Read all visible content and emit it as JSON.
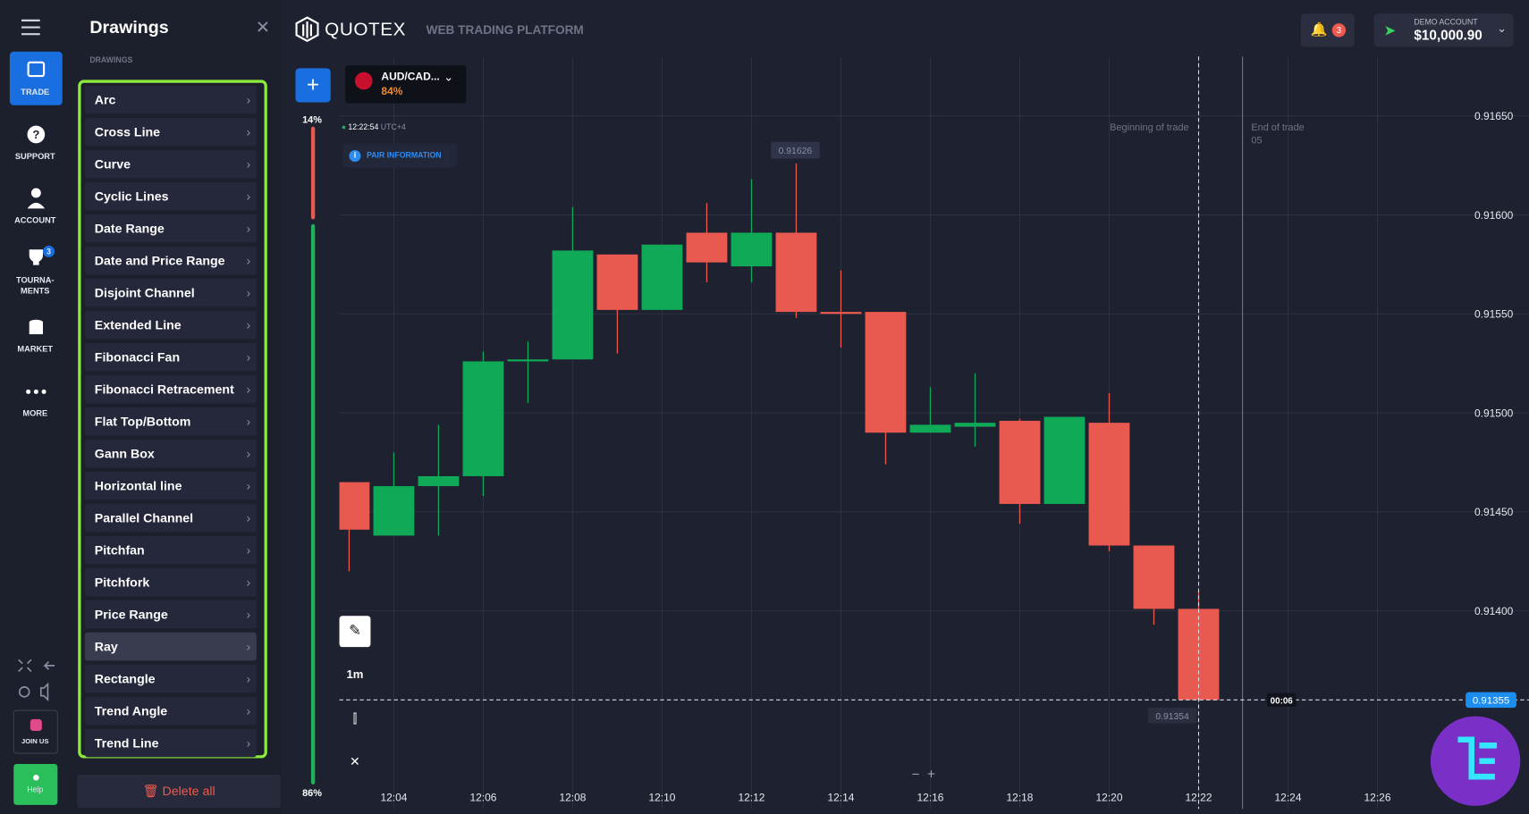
{
  "left_nav": {
    "trade": "TRADE",
    "support": "SUPPORT",
    "account": "ACCOUNT",
    "tournaments_1": "TOURNA-",
    "tournaments_2": "MENTS",
    "tournament_badge": "3",
    "market": "MARKET",
    "more": "MORE",
    "join": "JOIN US",
    "help": "Help"
  },
  "drawings_panel": {
    "title": "Drawings",
    "section": "DRAWINGS",
    "items": [
      "Arc",
      "Cross Line",
      "Curve",
      "Cyclic Lines",
      "Date Range",
      "Date and Price Range",
      "Disjoint Channel",
      "Extended Line",
      "Fibonacci Fan",
      "Fibonacci Retracement",
      "Flat Top/Bottom",
      "Gann Box",
      "Horizontal line",
      "Parallel Channel",
      "Pitchfan",
      "Pitchfork",
      "Price Range",
      "Ray",
      "Rectangle",
      "Trend Angle",
      "Trend Line"
    ],
    "selected": "Ray",
    "delete": "Delete all"
  },
  "header": {
    "brand": "QUOTEX",
    "subtitle": "WEB TRADING PLATFORM",
    "notifications": "3",
    "account_label": "DEMO ACCOUNT",
    "balance": "$10,000.90"
  },
  "asset": {
    "pair": "AUD/CAD...",
    "payout": "84%"
  },
  "sentiment": {
    "top": "14%",
    "bottom": "86%"
  },
  "clock": {
    "time": "12:22:54",
    "zone": "UTC+4"
  },
  "pair_info": "PAIR INFORMATION",
  "toolbar": {
    "timeframe": "1m"
  },
  "chart": {
    "type": "candlestick",
    "up_color": "#0fa958",
    "down_color": "#e85a4f",
    "ylim": [
      0.913,
      0.9168
    ],
    "yticks": [
      {
        "value": 0.9165,
        "label": "0.91650"
      },
      {
        "value": 0.916,
        "label": "0.91600"
      },
      {
        "value": 0.9155,
        "label": "0.91550"
      },
      {
        "value": 0.915,
        "label": "0.91500"
      },
      {
        "value": 0.9145,
        "label": "0.91450"
      },
      {
        "value": 0.914,
        "label": "0.91400"
      }
    ],
    "xtick_labels": [
      "12:04",
      "12:06",
      "12:08",
      "12:10",
      "12:12",
      "12:14",
      "12:16",
      "12:18",
      "12:20",
      "12:22",
      "12:24",
      "12:26"
    ],
    "candles": [
      {
        "open": 0.91465,
        "high": 0.91465,
        "low": 0.9142,
        "close": 0.91441
      },
      {
        "open": 0.91438,
        "high": 0.9148,
        "low": 0.91438,
        "close": 0.91463
      },
      {
        "open": 0.91463,
        "high": 0.91494,
        "low": 0.91438,
        "close": 0.91468
      },
      {
        "open": 0.91468,
        "high": 0.91531,
        "low": 0.91458,
        "close": 0.91526
      },
      {
        "open": 0.91526,
        "high": 0.91536,
        "low": 0.91505,
        "close": 0.91527
      },
      {
        "open": 0.91527,
        "high": 0.91604,
        "low": 0.91527,
        "close": 0.91582
      },
      {
        "open": 0.9158,
        "high": 0.9158,
        "low": 0.9153,
        "close": 0.91552
      },
      {
        "open": 0.91552,
        "high": 0.91585,
        "low": 0.91552,
        "close": 0.91585
      },
      {
        "open": 0.91591,
        "high": 0.91606,
        "low": 0.91566,
        "close": 0.91576
      },
      {
        "open": 0.91574,
        "high": 0.91618,
        "low": 0.91566,
        "close": 0.91591
      },
      {
        "open": 0.91591,
        "high": 0.91626,
        "low": 0.91548,
        "close": 0.91551
      },
      {
        "open": 0.91551,
        "high": 0.91572,
        "low": 0.91533,
        "close": 0.9155
      },
      {
        "open": 0.91551,
        "high": 0.91551,
        "low": 0.91474,
        "close": 0.9149
      },
      {
        "open": 0.9149,
        "high": 0.91513,
        "low": 0.9149,
        "close": 0.91494
      },
      {
        "open": 0.91493,
        "high": 0.9152,
        "low": 0.91483,
        "close": 0.91495
      },
      {
        "open": 0.91496,
        "high": 0.91497,
        "low": 0.91444,
        "close": 0.91454
      },
      {
        "open": 0.91454,
        "high": 0.91498,
        "low": 0.91454,
        "close": 0.91498
      },
      {
        "open": 0.91495,
        "high": 0.9151,
        "low": 0.9143,
        "close": 0.91433
      },
      {
        "open": 0.91433,
        "high": 0.91433,
        "low": 0.91393,
        "close": 0.91401
      },
      {
        "open": 0.91401,
        "high": 0.9141,
        "low": 0.91354,
        "close": 0.91355
      }
    ],
    "high_label": "0.91626",
    "low_label": "0.91354",
    "current_label": "0.91355",
    "beginning_of_trade": "Beginning of trade",
    "end_of_trade": "End of trade",
    "end_sub": "05",
    "countdown": "00:06"
  }
}
